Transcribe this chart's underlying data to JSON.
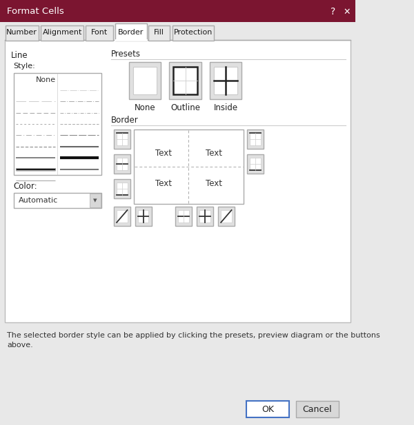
{
  "title": "Format Cells",
  "title_bar_color": "#7B1530",
  "title_text_color": "#FFFFFF",
  "dialog_bg": "#E8E8E8",
  "content_bg": "#F5F5F5",
  "white": "#FFFFFF",
  "tabs": [
    "Number",
    "Alignment",
    "Font",
    "Border",
    "Fill",
    "Protection"
  ],
  "active_tab": "Border",
  "section1_title": "Line",
  "section2_title": "Presets",
  "section3_title": "Border",
  "style_label": "Style:",
  "color_label": "Color:",
  "color_value": "Automatic",
  "preset_labels": [
    "None",
    "Outline",
    "Inside"
  ],
  "bottom_text1": "The selected border style can be applied by clicking the presets, preview diagram or the buttons",
  "bottom_text2": "above.",
  "ok_label": "OK",
  "cancel_label": "Cancel",
  "border_ec": "#AAAAAA",
  "dark_line": "#222222",
  "mid_line": "#888888",
  "light_line": "#CCCCCC"
}
